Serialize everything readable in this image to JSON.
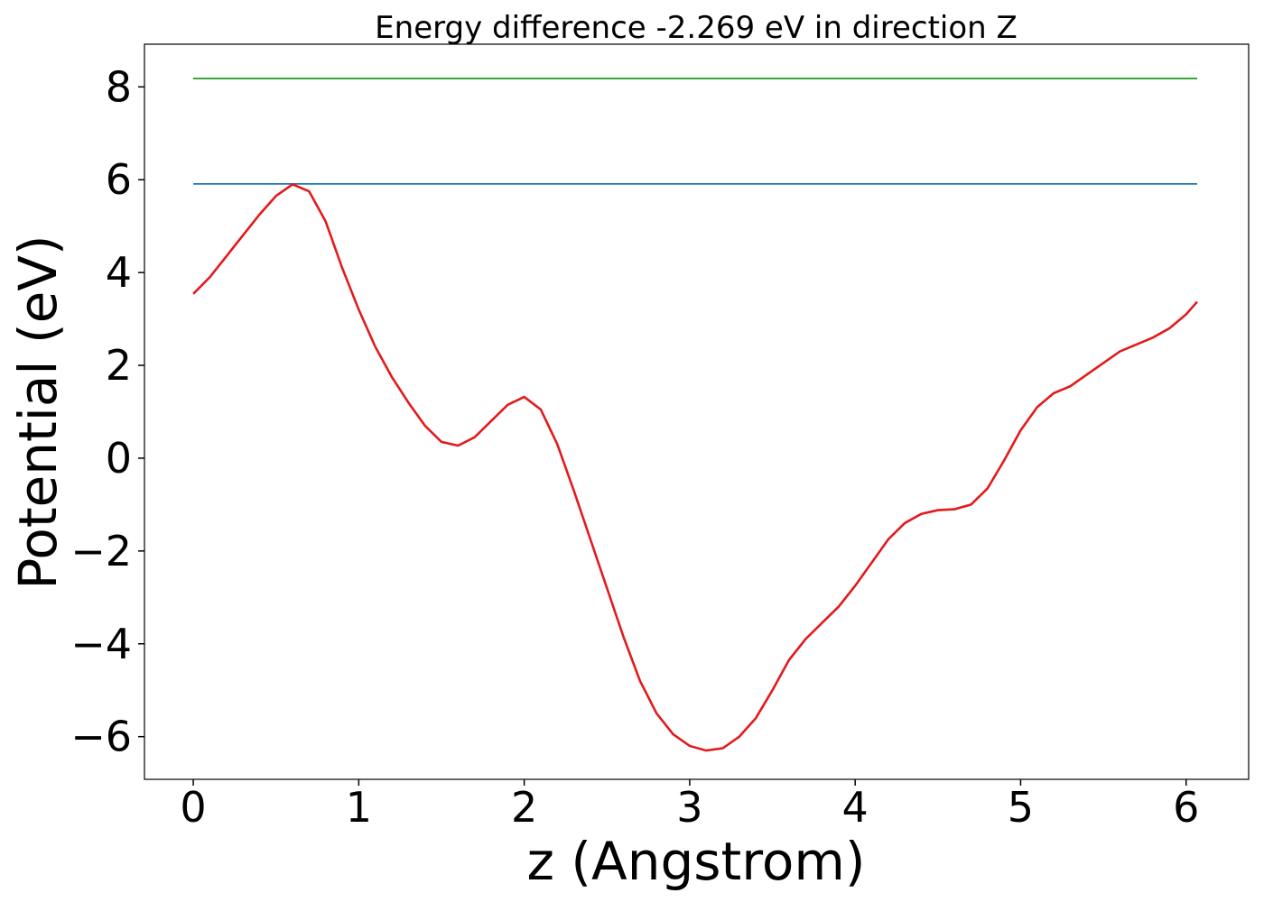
{
  "chart_data": {
    "type": "line",
    "title": "Energy difference -2.269 eV in direction Z",
    "x_label": "z (Angstrom)",
    "y_label": "Potential (eV)",
    "xlim": [
      -0.295,
      6.378
    ],
    "ylim": [
      -6.92,
      8.92
    ],
    "xticks": [
      0,
      1,
      2,
      3,
      4,
      5,
      6
    ],
    "yticks": [
      {
        "value": -6,
        "label": "−6"
      },
      {
        "value": -4,
        "label": "−4"
      },
      {
        "value": -2,
        "label": "−2"
      },
      0,
      2,
      4,
      6,
      8
    ],
    "series": [
      {
        "color": "#2ca02c",
        "x": [
          0,
          6.067
        ],
        "values": [
          8.18,
          8.18
        ]
      },
      {
        "color": "#1f77b4",
        "x": [
          0,
          6.067
        ],
        "values": [
          5.91,
          5.91
        ]
      },
      {
        "color": "#e31a1c",
        "x": [
          0,
          0.1,
          0.2,
          0.3,
          0.4,
          0.5,
          0.6,
          0.7,
          0.8,
          0.9,
          1.0,
          1.1,
          1.2,
          1.3,
          1.4,
          1.5,
          1.6,
          1.7,
          1.8,
          1.9,
          2.0,
          2.1,
          2.2,
          2.3,
          2.4,
          2.5,
          2.6,
          2.7,
          2.8,
          2.9,
          3.0,
          3.1,
          3.2,
          3.3,
          3.4,
          3.5,
          3.6,
          3.7,
          3.8,
          3.9,
          4.0,
          4.1,
          4.2,
          4.3,
          4.4,
          4.5,
          4.6,
          4.7,
          4.8,
          4.9,
          5.0,
          5.1,
          5.2,
          5.3,
          5.4,
          5.5,
          5.6,
          5.7,
          5.8,
          5.9,
          6.0,
          6.067
        ],
        "values": [
          3.54,
          3.9,
          4.35,
          4.8,
          5.25,
          5.65,
          5.9,
          5.75,
          5.1,
          4.1,
          3.2,
          2.4,
          1.75,
          1.2,
          0.7,
          0.35,
          0.27,
          0.45,
          0.8,
          1.15,
          1.32,
          1.05,
          0.3,
          -0.7,
          -1.75,
          -2.8,
          -3.85,
          -4.8,
          -5.5,
          -5.95,
          -6.2,
          -6.3,
          -6.25,
          -6.0,
          -5.6,
          -5.0,
          -4.35,
          -3.9,
          -3.55,
          -3.2,
          -2.75,
          -2.25,
          -1.75,
          -1.4,
          -1.2,
          -1.12,
          -1.1,
          -1.0,
          -0.65,
          -0.05,
          0.6,
          1.1,
          1.4,
          1.55,
          1.8,
          2.05,
          2.3,
          2.45,
          2.6,
          2.8,
          3.1,
          3.37
        ]
      }
    ]
  }
}
